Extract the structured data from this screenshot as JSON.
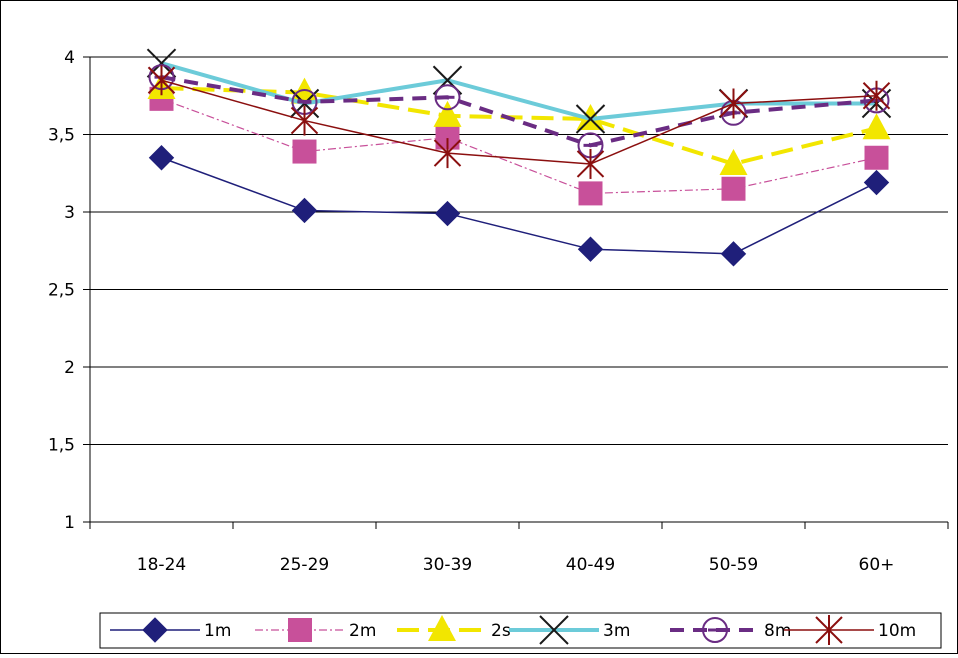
{
  "chart_data": {
    "type": "line",
    "title": "",
    "xlabel": "",
    "ylabel": "",
    "categories": [
      "18-24",
      "25-29",
      "30-39",
      "40-49",
      "50-59",
      "60+"
    ],
    "ylim": [
      1,
      4
    ],
    "yticks": [
      "1",
      "1,5",
      "2",
      "2,5",
      "3",
      "3,5",
      "4"
    ],
    "grid": true,
    "legend_position": "bottom",
    "series": [
      {
        "name": "1m",
        "values": [
          3.35,
          3.01,
          2.99,
          2.76,
          2.73,
          3.19
        ],
        "color": "#1F1F7A",
        "dash": "",
        "width": 1.5,
        "marker": "diamond"
      },
      {
        "name": "2m",
        "values": [
          3.73,
          3.39,
          3.48,
          3.12,
          3.15,
          3.35
        ],
        "color": "#C8509A",
        "dash": "8,3,2,3",
        "width": 1.2,
        "marker": "square"
      },
      {
        "name": "2s",
        "values": [
          3.8,
          3.77,
          3.62,
          3.6,
          3.31,
          3.54
        ],
        "color": "#F2E600",
        "dash": "22,9",
        "width": 4,
        "marker": "triangle"
      },
      {
        "name": "3m",
        "values": [
          3.96,
          3.7,
          3.85,
          3.6,
          3.7,
          3.7
        ],
        "color": "#6CCBD9",
        "dash": "",
        "width": 4,
        "marker": "x"
      },
      {
        "name": "8m",
        "values": [
          3.87,
          3.71,
          3.74,
          3.43,
          3.64,
          3.72
        ],
        "color": "#6A2C83",
        "dash": "14,9",
        "width": 4,
        "marker": "circle-bar"
      },
      {
        "name": "10m",
        "values": [
          3.85,
          3.59,
          3.38,
          3.31,
          3.7,
          3.75
        ],
        "color": "#8B0F0F",
        "dash": "",
        "width": 1.5,
        "marker": "star"
      }
    ]
  }
}
